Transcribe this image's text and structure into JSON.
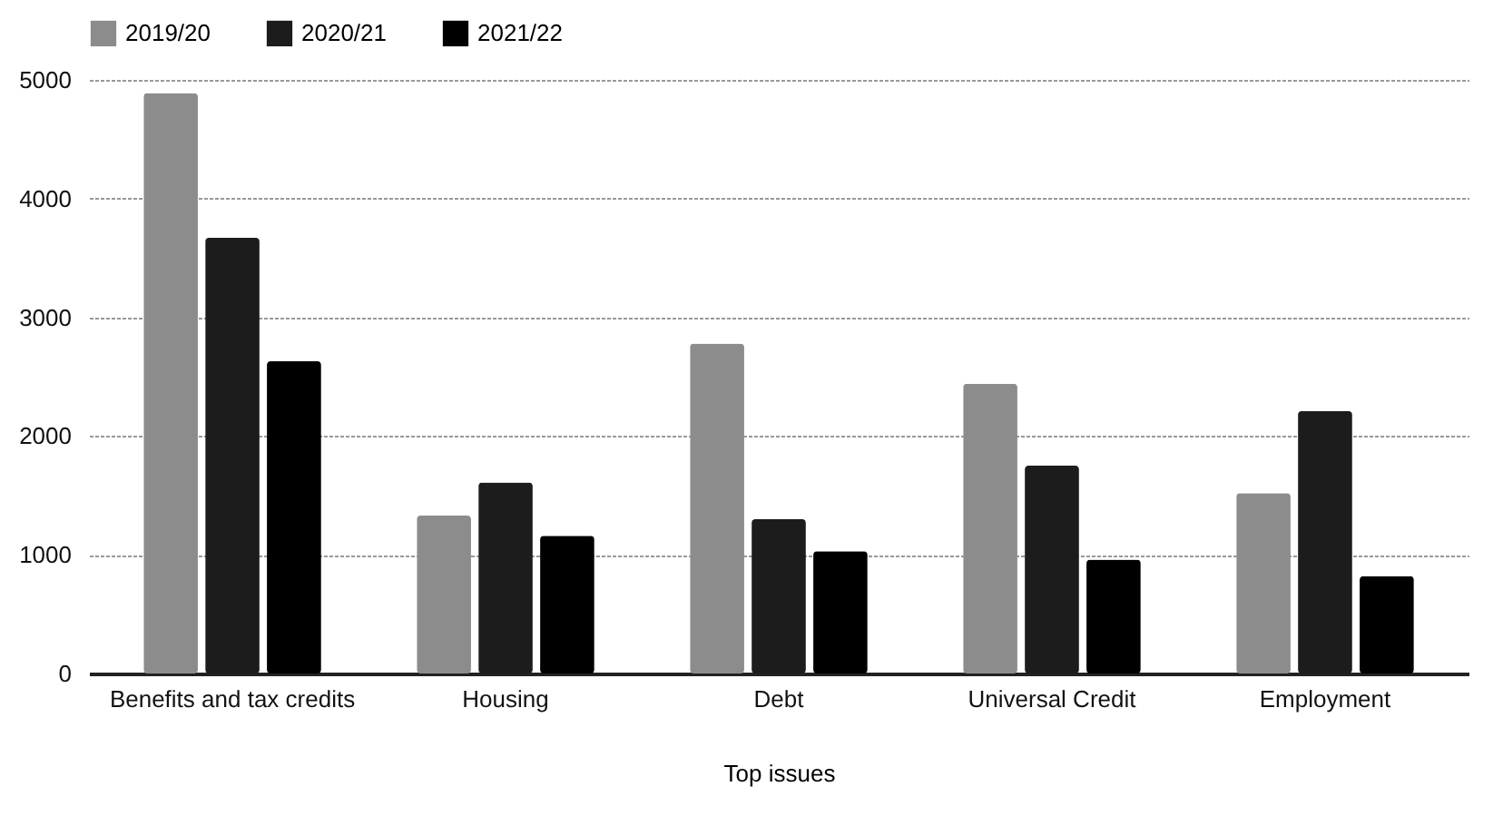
{
  "chart_data": {
    "type": "bar",
    "xlabel": "Top issues",
    "categories": [
      "Benefits and tax credits",
      "Housing",
      "Debt",
      "Universal Credit",
      "Employment"
    ],
    "series": [
      {
        "name": "2019/20",
        "color": "#8c8c8c",
        "values": [
          4890,
          1330,
          2780,
          2440,
          1520
        ]
      },
      {
        "name": "2020/21",
        "color": "#1c1c1c",
        "values": [
          3670,
          1610,
          1300,
          1750,
          2210
        ]
      },
      {
        "name": "2021/22",
        "color": "#000000",
        "values": [
          2630,
          1160,
          1030,
          960,
          820
        ]
      }
    ],
    "ylim": [
      0,
      5000
    ],
    "yticks": [
      0,
      1000,
      2000,
      3000,
      4000,
      5000
    ],
    "grid": "y",
    "legend": "top"
  }
}
